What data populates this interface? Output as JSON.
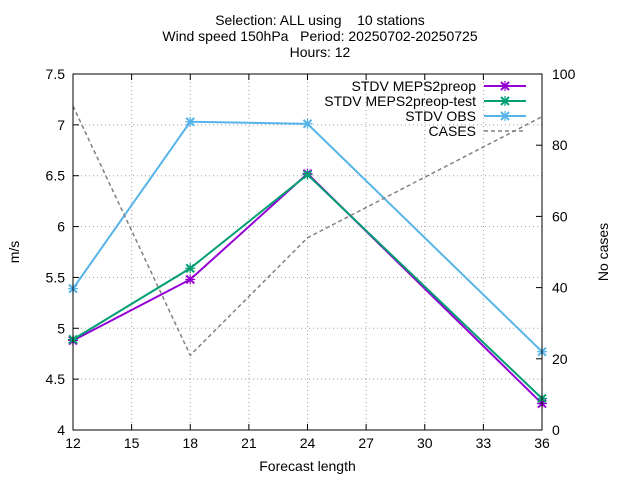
{
  "chart_data": {
    "type": "line",
    "title_lines": [
      "Selection: ALL using    10 stations",
      "Wind speed 150hPa   Period: 20250702-20250725",
      "Hours: 12"
    ],
    "xlabel": "Forecast length",
    "ylabel": "m/s",
    "y2label": "No cases",
    "xlim": [
      12,
      36
    ],
    "ylim": [
      4,
      7.5
    ],
    "y2lim": [
      0,
      100
    ],
    "xticks": [
      "12",
      "15",
      "18",
      "21",
      "24",
      "27",
      "30",
      "33",
      "36"
    ],
    "yticks": [
      "4",
      "4.5",
      "5",
      "5.5",
      "6",
      "6.5",
      "7",
      "7.5"
    ],
    "y2ticks": [
      "0",
      "20",
      "40",
      "60",
      "80",
      "100"
    ],
    "grid": true,
    "legend_position": "top-right",
    "x": [
      12,
      18,
      24,
      36
    ],
    "series": [
      {
        "name": "STDV MEPS2preop",
        "color": "#9400d3",
        "marker": "cross",
        "axis": "y",
        "values": [
          4.88,
          5.48,
          6.52,
          4.26
        ]
      },
      {
        "name": "STDV MEPS2preop-test",
        "color": "#009e73",
        "marker": "cross",
        "axis": "y",
        "values": [
          4.89,
          5.59,
          6.51,
          4.31
        ]
      },
      {
        "name": "STDV OBS",
        "color": "#56b4e9",
        "marker": "cross",
        "axis": "y",
        "values": [
          5.39,
          7.03,
          7.01,
          4.77
        ]
      },
      {
        "name": "CASES",
        "color": "#808080",
        "marker": "none",
        "dashed": true,
        "axis": "y2",
        "values": [
          91,
          21,
          54,
          88
        ]
      }
    ]
  }
}
